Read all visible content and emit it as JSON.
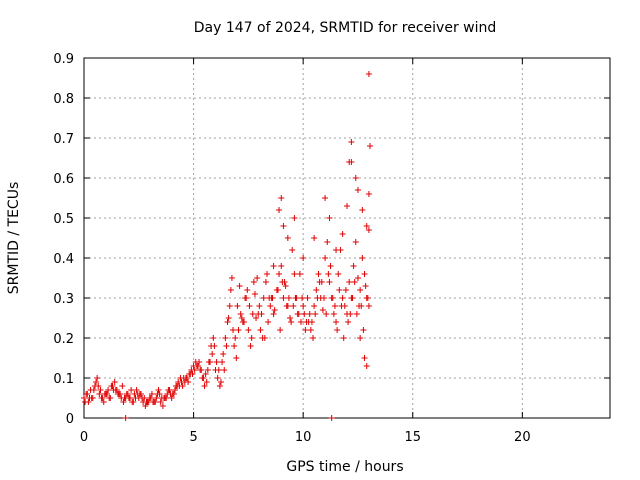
{
  "chart_data": {
    "type": "scatter",
    "title": "Day 147 of 2024, SRMTID for receiver wind",
    "xlabel": "GPS time / hours",
    "ylabel": "SRMTID / TECUs",
    "xlim": [
      0,
      24
    ],
    "ylim": [
      0,
      0.9
    ],
    "x_ticks": [
      0,
      5,
      10,
      15,
      20
    ],
    "y_ticks": [
      0,
      0.1,
      0.2,
      0.3,
      0.4,
      0.5,
      0.6,
      0.7,
      0.8,
      0.9
    ],
    "x_tick_labels": [
      "0",
      "5",
      "10",
      "15",
      "20"
    ],
    "y_tick_labels": [
      "0",
      "0.1",
      "0.2",
      "0.3",
      "0.4",
      "0.5",
      "0.6",
      "0.7",
      "0.8",
      "0.9"
    ],
    "grid": true,
    "marker": "+",
    "color": "#e00000",
    "series": [
      {
        "name": "SRMTID",
        "x": [
          0.0,
          0.1,
          0.2,
          0.3,
          0.4,
          0.5,
          0.6,
          0.7,
          0.8,
          0.9,
          1.0,
          1.1,
          1.2,
          1.3,
          1.4,
          1.5,
          1.6,
          1.7,
          1.8,
          1.9,
          2.0,
          2.1,
          2.2,
          2.3,
          2.4,
          2.5,
          2.6,
          2.7,
          2.8,
          2.9,
          3.0,
          3.1,
          3.2,
          3.3,
          3.4,
          3.5,
          3.6,
          3.7,
          3.8,
          3.9,
          4.0,
          4.1,
          4.2,
          4.3,
          4.4,
          4.5,
          4.6,
          4.7,
          4.8,
          4.9,
          5.0,
          5.1,
          5.2,
          5.3,
          5.4,
          5.5,
          5.6,
          5.7,
          5.8,
          5.9,
          6.0,
          6.1,
          6.2,
          6.3,
          6.4,
          6.5,
          6.6,
          6.7,
          6.8,
          6.9,
          7.0,
          7.1,
          7.2,
          7.3,
          7.4,
          7.5,
          7.6,
          7.7,
          7.8,
          7.9,
          8.0,
          8.1,
          8.2,
          8.3,
          8.4,
          8.5,
          8.6,
          8.7,
          8.8,
          8.9,
          9.0,
          9.1,
          9.2,
          9.3,
          9.4,
          9.5,
          9.6,
          9.7,
          9.8,
          9.9,
          10.0,
          10.1,
          10.2,
          10.3,
          10.4,
          10.5,
          10.6,
          10.7,
          10.8,
          10.9,
          11.0,
          11.1,
          11.2,
          11.3,
          11.4,
          11.5,
          11.6,
          11.7,
          11.8,
          11.9,
          12.0,
          12.1,
          12.2,
          12.3,
          12.4,
          12.5,
          12.6,
          12.7,
          12.8,
          12.9,
          13.0,
          0.05,
          0.25,
          0.45,
          0.65,
          0.85,
          1.05,
          1.25,
          1.45,
          1.65,
          1.85,
          2.05,
          2.25,
          2.45,
          2.65,
          2.85,
          3.05,
          3.25,
          3.45,
          3.65,
          3.85,
          4.05,
          4.25,
          4.45,
          4.65,
          4.85,
          5.05,
          5.25,
          5.45,
          5.65,
          5.85,
          6.05,
          6.25,
          6.45,
          6.65,
          6.85,
          7.05,
          7.25,
          7.45,
          7.65,
          7.85,
          8.05,
          8.25,
          8.45,
          8.65,
          8.85,
          9.05,
          9.25,
          9.45,
          9.65,
          9.85,
          10.05,
          10.25,
          10.45,
          10.65,
          10.85,
          11.05,
          11.25,
          11.45,
          11.65,
          11.85,
          12.05,
          12.25,
          12.45,
          12.65,
          12.85,
          0.15,
          0.35,
          0.55,
          0.75,
          0.95,
          1.15,
          1.35,
          1.55,
          1.75,
          1.95,
          2.15,
          2.35,
          2.55,
          2.75,
          2.95,
          3.15,
          3.35,
          3.55,
          3.75,
          3.95,
          4.15,
          4.35,
          4.55,
          4.75,
          4.95,
          5.15,
          5.35,
          5.55,
          5.75,
          5.95,
          6.15,
          6.35,
          6.55,
          6.75,
          6.95,
          7.15,
          7.35,
          7.55,
          7.75,
          7.95,
          8.15,
          8.35,
          8.55,
          8.65,
          8.95,
          9.15,
          9.35,
          9.55,
          9.75,
          9.95,
          10.15,
          10.35,
          10.55,
          10.75,
          10.95,
          11.15,
          11.35,
          11.55,
          11.75,
          11.95,
          12.15,
          12.35,
          12.55,
          12.75,
          12.95,
          8.9,
          9.0,
          9.1,
          9.3,
          9.6,
          10.0,
          10.5,
          11.0,
          11.2,
          11.5,
          11.8,
          12.0,
          12.1,
          12.2,
          12.4,
          12.5,
          12.7,
          12.9,
          13.0,
          13.0,
          13.05,
          11.3,
          1.9,
          12.2,
          12.6,
          12.8,
          12.9,
          13.0
        ],
        "y": [
          0.05,
          0.06,
          0.04,
          0.07,
          0.05,
          0.08,
          0.1,
          0.06,
          0.05,
          0.04,
          0.06,
          0.07,
          0.05,
          0.08,
          0.09,
          0.07,
          0.06,
          0.05,
          0.04,
          0.05,
          0.06,
          0.05,
          0.04,
          0.06,
          0.07,
          0.05,
          0.06,
          0.04,
          0.03,
          0.04,
          0.05,
          0.06,
          0.04,
          0.05,
          0.07,
          0.04,
          0.03,
          0.05,
          0.06,
          0.07,
          0.05,
          0.06,
          0.08,
          0.09,
          0.1,
          0.08,
          0.09,
          0.1,
          0.11,
          0.12,
          0.13,
          0.14,
          0.13,
          0.12,
          0.1,
          0.08,
          0.09,
          0.14,
          0.18,
          0.2,
          0.12,
          0.1,
          0.08,
          0.14,
          0.12,
          0.18,
          0.25,
          0.32,
          0.22,
          0.2,
          0.28,
          0.33,
          0.25,
          0.24,
          0.3,
          0.22,
          0.18,
          0.26,
          0.31,
          0.35,
          0.28,
          0.26,
          0.3,
          0.34,
          0.24,
          0.28,
          0.3,
          0.27,
          0.32,
          0.36,
          0.38,
          0.3,
          0.33,
          0.28,
          0.25,
          0.42,
          0.36,
          0.3,
          0.26,
          0.24,
          0.28,
          0.22,
          0.3,
          0.26,
          0.24,
          0.28,
          0.32,
          0.36,
          0.3,
          0.27,
          0.4,
          0.44,
          0.34,
          0.3,
          0.26,
          0.24,
          0.36,
          0.42,
          0.3,
          0.28,
          0.26,
          0.34,
          0.3,
          0.38,
          0.44,
          0.35,
          0.32,
          0.4,
          0.36,
          0.3,
          0.28,
          0.04,
          0.05,
          0.07,
          0.08,
          0.05,
          0.06,
          0.08,
          0.07,
          0.06,
          0.05,
          0.05,
          0.04,
          0.06,
          0.05,
          0.04,
          0.05,
          0.04,
          0.06,
          0.05,
          0.07,
          0.06,
          0.08,
          0.09,
          0.1,
          0.11,
          0.12,
          0.14,
          0.1,
          0.12,
          0.16,
          0.14,
          0.09,
          0.2,
          0.28,
          0.18,
          0.22,
          0.24,
          0.32,
          0.2,
          0.25,
          0.22,
          0.2,
          0.3,
          0.26,
          0.32,
          0.34,
          0.28,
          0.24,
          0.3,
          0.36,
          0.26,
          0.24,
          0.2,
          0.3,
          0.34,
          0.26,
          0.38,
          0.28,
          0.32,
          0.2,
          0.24,
          0.3,
          0.26,
          0.28,
          0.33,
          0.06,
          0.05,
          0.09,
          0.07,
          0.06,
          0.05,
          0.07,
          0.06,
          0.08,
          0.06,
          0.07,
          0.05,
          0.06,
          0.05,
          0.04,
          0.04,
          0.06,
          0.05,
          0.05,
          0.06,
          0.07,
          0.08,
          0.1,
          0.09,
          0.11,
          0.13,
          0.12,
          0.11,
          0.14,
          0.18,
          0.12,
          0.16,
          0.24,
          0.35,
          0.15,
          0.26,
          0.3,
          0.28,
          0.34,
          0.26,
          0.2,
          0.36,
          0.3,
          0.38,
          0.22,
          0.34,
          0.3,
          0.28,
          0.26,
          0.3,
          0.24,
          0.22,
          0.26,
          0.34,
          0.3,
          0.36,
          0.3,
          0.22,
          0.28,
          0.32,
          0.26,
          0.34,
          0.28,
          0.22,
          0.3,
          0.52,
          0.55,
          0.48,
          0.45,
          0.5,
          0.4,
          0.45,
          0.55,
          0.5,
          0.42,
          0.46,
          0.53,
          0.64,
          0.69,
          0.6,
          0.57,
          0.52,
          0.48,
          0.47,
          0.56,
          0.68,
          0.0,
          0.0,
          0.64,
          0.2,
          0.15,
          0.13,
          0.86
        ]
      }
    ]
  }
}
